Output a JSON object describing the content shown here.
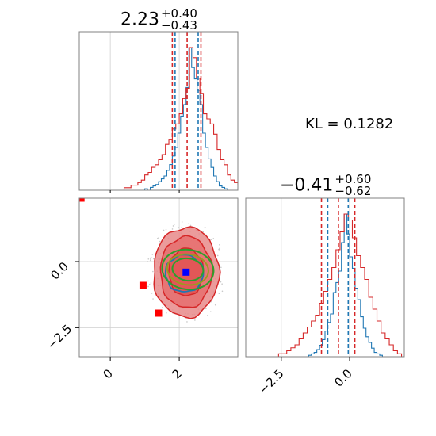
{
  "chart_data": [
    {
      "panel": "marginal-param1",
      "type": "histogram",
      "title": {
        "value": "2.23",
        "plus": "+0.40",
        "minus": "−0.43"
      },
      "xlim": [
        -0.9,
        3.7
      ],
      "grid": true,
      "series": [
        {
          "name": "",
          "color": "#1f77b4",
          "edges_start": 1.0,
          "bin_width": 0.08,
          "counts": [
            1,
            0,
            2,
            3,
            4,
            6,
            8,
            10,
            14,
            18,
            24,
            30,
            40,
            52,
            60,
            72,
            100,
            86,
            78,
            70,
            60,
            40,
            30,
            22,
            16,
            10,
            6,
            3,
            2,
            1
          ]
        },
        {
          "name": "",
          "color": "#d62728",
          "edges_start": 0.4,
          "bin_width": 0.1,
          "counts": [
            1,
            1,
            2,
            2,
            3,
            4,
            6,
            7,
            9,
            10,
            12,
            14,
            18,
            20,
            24,
            26,
            30,
            36,
            40,
            56,
            52,
            44,
            38,
            30,
            28,
            26,
            22,
            16,
            12,
            10,
            6,
            4,
            3,
            2,
            1,
            1
          ]
        }
      ],
      "quantile_lines": [
        {
          "x": 1.8,
          "color": "#d62728"
        },
        {
          "x": 1.88,
          "color": "#1f77b4"
        },
        {
          "x": 2.23,
          "color": "#d62728"
        },
        {
          "x": 2.55,
          "color": "#1f77b4"
        },
        {
          "x": 2.63,
          "color": "#d62728"
        }
      ]
    },
    {
      "panel": "marginal-param2",
      "type": "histogram",
      "title": {
        "value": "−0.41",
        "plus": "+0.60",
        "minus": "−0.62"
      },
      "xlim": [
        -3.8,
        2.0
      ],
      "xticks": [
        "−2.5",
        "0.0"
      ],
      "xtick_values": [
        -2.5,
        0.0
      ],
      "grid": true,
      "series": [
        {
          "name": "",
          "color": "#1f77b4",
          "edges_start": -1.5,
          "bin_width": 0.1,
          "counts": [
            1,
            2,
            3,
            5,
            8,
            12,
            18,
            24,
            30,
            45,
            52,
            60,
            80,
            100,
            86,
            70,
            62,
            48,
            40,
            28,
            20,
            14,
            10,
            6,
            3,
            2,
            1
          ]
        },
        {
          "name": "",
          "color": "#d62728",
          "edges_start": -2.6,
          "bin_width": 0.15,
          "counts": [
            1,
            1,
            2,
            3,
            4,
            6,
            8,
            10,
            12,
            14,
            18,
            22,
            26,
            30,
            36,
            42,
            48,
            46,
            40,
            34,
            30,
            26,
            20,
            16,
            12,
            8,
            6,
            4,
            2,
            1
          ]
        }
      ],
      "quantile_lines": [
        {
          "x": -1.03,
          "color": "#d62728"
        },
        {
          "x": -0.8,
          "color": "#1f77b4"
        },
        {
          "x": -0.41,
          "color": "#d62728"
        },
        {
          "x": -0.05,
          "color": "#1f77b4"
        },
        {
          "x": 0.19,
          "color": "#d62728"
        }
      ]
    },
    {
      "panel": "joint",
      "type": "contour",
      "xlim": [
        -0.9,
        3.7
      ],
      "ylim": [
        -3.6,
        2.4
      ],
      "xticks": [
        "0",
        "2"
      ],
      "xtick_values": [
        0,
        2
      ],
      "yticks": [
        "0.0",
        "−2.5"
      ],
      "ytick_values": [
        0.0,
        -2.5
      ],
      "grid": true,
      "red_contours": [
        {
          "cx": 2.2,
          "cy": -0.4,
          "rx": 0.95,
          "ry": 1.7,
          "fill": "#e88a8a"
        },
        {
          "cx": 2.2,
          "cy": -0.4,
          "rx": 0.75,
          "ry": 1.35,
          "fill": "#e66f6f"
        },
        {
          "cx": 2.2,
          "cy": -0.4,
          "rx": 0.5,
          "ry": 0.9,
          "fill": "#e05252"
        }
      ],
      "green_contours": [
        {
          "cx": 2.25,
          "cy": -0.3,
          "rx": 0.75,
          "ry": 0.75
        },
        {
          "cx": 2.25,
          "cy": -0.3,
          "rx": 0.6,
          "ry": 0.58
        },
        {
          "cx": 2.25,
          "cy": -0.3,
          "rx": 0.45,
          "ry": 0.42
        }
      ],
      "blue_contours": [
        {
          "cx": 2.15,
          "cy": -0.45,
          "rx": 0.55,
          "ry": 0.7
        }
      ],
      "red_points": [
        {
          "x": -0.85,
          "y": 2.4
        },
        {
          "x": 0.95,
          "y": -0.9
        },
        {
          "x": 1.4,
          "y": -1.95
        }
      ],
      "blue_point": {
        "x": 2.2,
        "y": -0.4
      }
    }
  ],
  "annotation": {
    "kl_text": "KL = 0.1282"
  },
  "colors": {
    "blue": "#1f77b4",
    "red": "#d62728",
    "green": "#2ca02c",
    "olive": "#9a9a20",
    "grid": "#cfcfcf",
    "frame": "#808080"
  }
}
